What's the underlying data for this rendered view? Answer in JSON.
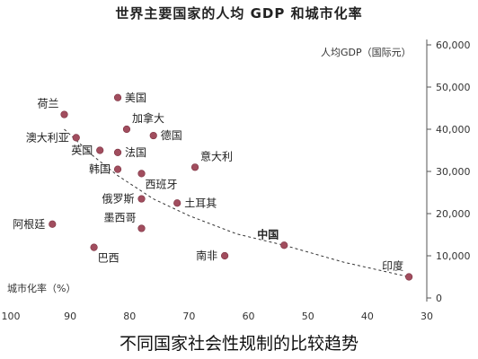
{
  "chart_data": {
    "type": "scatter",
    "title": "世界主要国家的人均 GDP 和城市化率",
    "ylabel": "人均GDP（国际元）",
    "xlabel": "城市化率（%）",
    "caption": "不同国家社会性规制的比较趋势",
    "x_axis": {
      "ticks": [
        100,
        90,
        80,
        70,
        60,
        50,
        40,
        30
      ],
      "range": [
        100,
        30
      ],
      "reversed": true
    },
    "y_axis": {
      "ticks": [
        "0",
        "10,000",
        "20,000",
        "30,000",
        "40,000",
        "50,000",
        "60,000"
      ],
      "range": [
        0,
        60000
      ],
      "position": "right"
    },
    "points": [
      {
        "label": "美国",
        "x": 82,
        "y": 47500,
        "label_pos": "right"
      },
      {
        "label": "荷兰",
        "x": 91,
        "y": 43500,
        "label_pos": "top-left"
      },
      {
        "label": "加拿大",
        "x": 80.5,
        "y": 40000,
        "label_pos": "top-right"
      },
      {
        "label": "澳大利亚",
        "x": 89,
        "y": 38000,
        "label_pos": "left"
      },
      {
        "label": "德国",
        "x": 76,
        "y": 38500,
        "label_pos": "right"
      },
      {
        "label": "英国",
        "x": 85,
        "y": 35000,
        "label_pos": "left"
      },
      {
        "label": "法国",
        "x": 82,
        "y": 34500,
        "label_pos": "right"
      },
      {
        "label": "意大利",
        "x": 69,
        "y": 31000,
        "label_pos": "top-right"
      },
      {
        "label": "韩国",
        "x": 82,
        "y": 30500,
        "label_pos": "left"
      },
      {
        "label": "西班牙",
        "x": 78,
        "y": 29500,
        "label_pos": "bottom"
      },
      {
        "label": "俄罗斯",
        "x": 78,
        "y": 23500,
        "label_pos": "left"
      },
      {
        "label": "土耳其",
        "x": 72,
        "y": 22500,
        "label_pos": "right"
      },
      {
        "label": "阿根廷",
        "x": 93,
        "y": 17500,
        "label_pos": "left"
      },
      {
        "label": "墨西哥",
        "x": 78,
        "y": 16500,
        "label_pos": "top-left"
      },
      {
        "label": "巴西",
        "x": 86,
        "y": 12000,
        "label_pos": "bottom"
      },
      {
        "label": "南非",
        "x": 64,
        "y": 10000,
        "label_pos": "left"
      },
      {
        "label": "中国",
        "x": 54,
        "y": 12500,
        "label_pos": "top-left",
        "highlight": true
      },
      {
        "label": "印度",
        "x": 33,
        "y": 5000,
        "label_pos": "top-left"
      }
    ],
    "trendline": {
      "style": "dashed"
    },
    "grid": false
  }
}
